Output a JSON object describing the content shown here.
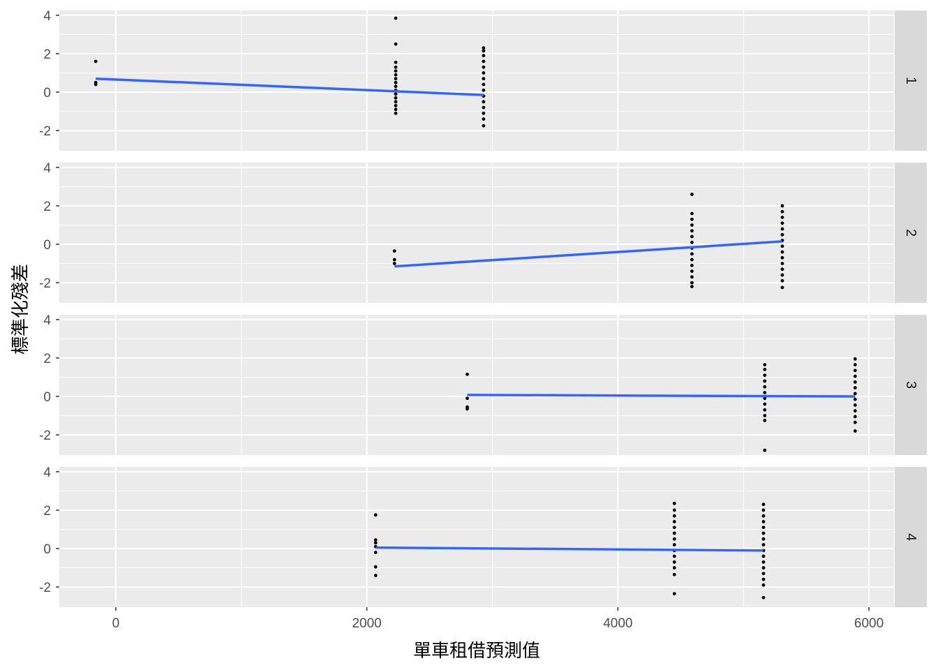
{
  "chart_data": {
    "type": "scatter",
    "xlabel": "單車租借預測值",
    "ylabel": "標準化殘差",
    "xlim": [
      -450,
      6200
    ],
    "ylim": [
      -3.05,
      4.25
    ],
    "x_ticks": [
      0,
      2000,
      4000,
      6000
    ],
    "x_tick_labels": [
      "0",
      "2000",
      "4000",
      "6000"
    ],
    "y_ticks": [
      -2,
      0,
      2,
      4
    ],
    "y_tick_labels": [
      "-2",
      "0",
      "2",
      "4"
    ],
    "grid": true,
    "facets": [
      {
        "strip_label": "1",
        "points": [
          [
            -160,
            1.6
          ],
          [
            -160,
            0.5
          ],
          [
            -160,
            0.4
          ],
          [
            2230,
            3.85
          ],
          [
            2230,
            2.5
          ],
          [
            2230,
            1.55
          ],
          [
            2230,
            1.3
          ],
          [
            2230,
            1.1
          ],
          [
            2230,
            0.9
          ],
          [
            2230,
            0.7
          ],
          [
            2230,
            0.5
          ],
          [
            2230,
            0.3
          ],
          [
            2230,
            0.1
          ],
          [
            2230,
            -0.1
          ],
          [
            2230,
            -0.3
          ],
          [
            2230,
            -0.5
          ],
          [
            2230,
            -0.7
          ],
          [
            2230,
            -0.9
          ],
          [
            2230,
            -1.1
          ],
          [
            2930,
            2.3
          ],
          [
            2930,
            2.15
          ],
          [
            2930,
            1.9
          ],
          [
            2930,
            1.6
          ],
          [
            2930,
            1.3
          ],
          [
            2930,
            1.0
          ],
          [
            2930,
            0.7
          ],
          [
            2930,
            0.4
          ],
          [
            2930,
            0.1
          ],
          [
            2930,
            -0.2
          ],
          [
            2930,
            -0.5
          ],
          [
            2930,
            -0.8
          ],
          [
            2930,
            -1.1
          ],
          [
            2930,
            -1.4
          ],
          [
            2930,
            -1.75
          ]
        ],
        "fit_line": [
          [
            -160,
            0.7
          ],
          [
            2930,
            -0.15
          ]
        ]
      },
      {
        "strip_label": "2",
        "points": [
          [
            2220,
            -0.35
          ],
          [
            2220,
            -0.8
          ],
          [
            2220,
            -1.0
          ],
          [
            4590,
            2.6
          ],
          [
            4590,
            1.6
          ],
          [
            4590,
            1.3
          ],
          [
            4590,
            1.0
          ],
          [
            4590,
            0.7
          ],
          [
            4590,
            0.4
          ],
          [
            4590,
            0.1
          ],
          [
            4590,
            -0.2
          ],
          [
            4590,
            -0.5
          ],
          [
            4590,
            -0.8
          ],
          [
            4590,
            -1.1
          ],
          [
            4590,
            -1.4
          ],
          [
            4590,
            -1.7
          ],
          [
            4590,
            -2.0
          ],
          [
            4590,
            -2.2
          ],
          [
            5310,
            2.0
          ],
          [
            5310,
            1.7
          ],
          [
            5310,
            1.4
          ],
          [
            5310,
            1.1
          ],
          [
            5310,
            0.8
          ],
          [
            5310,
            0.5
          ],
          [
            5310,
            0.2
          ],
          [
            5310,
            -0.1
          ],
          [
            5310,
            -0.4
          ],
          [
            5310,
            -0.7
          ],
          [
            5310,
            -1.0
          ],
          [
            5310,
            -1.3
          ],
          [
            5310,
            -1.6
          ],
          [
            5310,
            -1.9
          ],
          [
            5310,
            -2.25
          ]
        ],
        "fit_line": [
          [
            2220,
            -1.15
          ],
          [
            5310,
            0.15
          ]
        ]
      },
      {
        "strip_label": "3",
        "points": [
          [
            2800,
            1.15
          ],
          [
            2800,
            -0.1
          ],
          [
            2800,
            -0.55
          ],
          [
            2800,
            -0.65
          ],
          [
            5170,
            1.65
          ],
          [
            5170,
            1.4
          ],
          [
            5170,
            1.1
          ],
          [
            5170,
            0.8
          ],
          [
            5170,
            0.5
          ],
          [
            5170,
            0.2
          ],
          [
            5170,
            -0.1
          ],
          [
            5170,
            -0.4
          ],
          [
            5170,
            -0.7
          ],
          [
            5170,
            -1.0
          ],
          [
            5170,
            -1.25
          ],
          [
            5170,
            -2.8
          ],
          [
            5890,
            1.95
          ],
          [
            5890,
            1.65
          ],
          [
            5890,
            1.35
          ],
          [
            5890,
            1.05
          ],
          [
            5890,
            0.75
          ],
          [
            5890,
            0.45
          ],
          [
            5890,
            0.15
          ],
          [
            5890,
            -0.15
          ],
          [
            5890,
            -0.45
          ],
          [
            5890,
            -0.75
          ],
          [
            5890,
            -1.05
          ],
          [
            5890,
            -1.35
          ],
          [
            5890,
            -1.8
          ]
        ],
        "fit_line": [
          [
            2800,
            0.08
          ],
          [
            5890,
            0.0
          ]
        ]
      },
      {
        "strip_label": "4",
        "points": [
          [
            2070,
            1.75
          ],
          [
            2070,
            0.45
          ],
          [
            2070,
            0.3
          ],
          [
            2070,
            0.1
          ],
          [
            2070,
            -0.2
          ],
          [
            2070,
            -0.95
          ],
          [
            2070,
            -1.4
          ],
          [
            4450,
            2.35
          ],
          [
            4450,
            2.0
          ],
          [
            4450,
            1.7
          ],
          [
            4450,
            1.4
          ],
          [
            4450,
            1.1
          ],
          [
            4450,
            0.8
          ],
          [
            4450,
            0.5
          ],
          [
            4450,
            0.2
          ],
          [
            4450,
            -0.1
          ],
          [
            4450,
            -0.4
          ],
          [
            4450,
            -0.7
          ],
          [
            4450,
            -1.0
          ],
          [
            4450,
            -1.35
          ],
          [
            4450,
            -2.35
          ],
          [
            5160,
            2.3
          ],
          [
            5160,
            2.0
          ],
          [
            5160,
            1.7
          ],
          [
            5160,
            1.4
          ],
          [
            5160,
            1.1
          ],
          [
            5160,
            0.8
          ],
          [
            5160,
            0.5
          ],
          [
            5160,
            0.2
          ],
          [
            5160,
            -0.1
          ],
          [
            5160,
            -0.4
          ],
          [
            5160,
            -0.7
          ],
          [
            5160,
            -1.0
          ],
          [
            5160,
            -1.3
          ],
          [
            5160,
            -1.6
          ],
          [
            5160,
            -1.9
          ],
          [
            5160,
            -2.55
          ]
        ],
        "fit_line": [
          [
            2070,
            0.05
          ],
          [
            5160,
            -0.1
          ]
        ]
      }
    ],
    "colors": {
      "panel_background": "#ebebeb",
      "grid_major": "#ffffff",
      "strip_background": "#d9d9d9",
      "points": "#000000",
      "fit_line": "#3366ff"
    }
  }
}
